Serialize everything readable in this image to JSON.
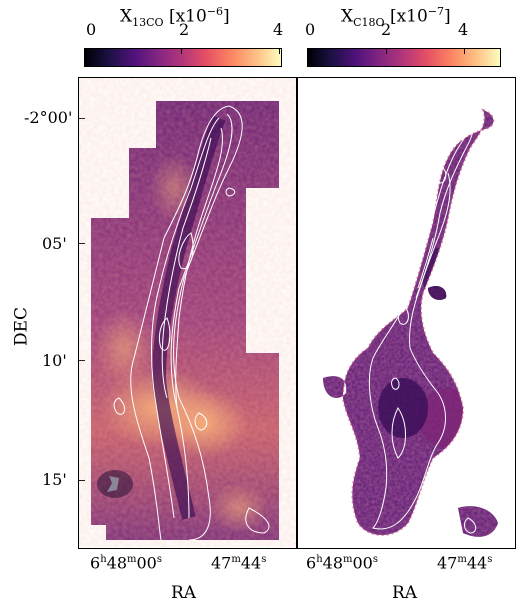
{
  "colorbars": [
    {
      "label": "X13CO [x10^-6]",
      "label_parts": {
        "main": "X",
        "sub": "13CO",
        "unit": " [x10",
        "exp": "−6",
        "close": "]"
      },
      "ticks": [
        "0",
        "2",
        "4"
      ],
      "colormap": "magma"
    },
    {
      "label": "XC18O [x10^-7]",
      "label_parts": {
        "main": "X",
        "sub": "C18O",
        "unit": " [x10",
        "exp": "−7",
        "close": "]"
      },
      "ticks": [
        "0",
        "2",
        "4"
      ],
      "colormap": "magma"
    }
  ],
  "axes": {
    "ylabel": "DEC",
    "yticks": [
      "-2°00'",
      "05'",
      "10'",
      "15'"
    ],
    "left_xlabel": "RA",
    "right_xlabel": "RA",
    "xticks": [
      {
        "h": "6",
        "hs": "h",
        "m": "48",
        "ms": "m",
        "s": "00",
        "ss": "s"
      },
      {
        "m": "47",
        "ms": "m",
        "s": "44",
        "ss": "s"
      }
    ]
  },
  "colors": {
    "contour": "#ffffff",
    "background_dark": "#2a0c4e",
    "mid": "#9b2d7a",
    "bright": "#f78a5a"
  }
}
